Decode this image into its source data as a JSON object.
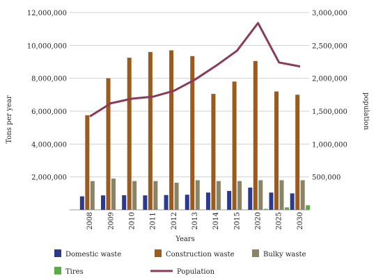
{
  "chart_data": {
    "type": "bar",
    "title": "",
    "xlabel": "Years",
    "ylabel": "Tons per year",
    "y2label": "population",
    "categories": [
      "2008",
      "2009",
      "2010",
      "2011",
      "2012",
      "2013",
      "2014",
      "2015",
      "2020",
      "2025",
      "2030"
    ],
    "ylim": [
      0,
      12000000
    ],
    "y2lim": [
      0,
      3000000
    ],
    "yticks": [
      "12,000,000",
      "10,000,000",
      "8,000,000",
      "6,000,000",
      "4,000,000",
      "2,000,000"
    ],
    "y2ticks": [
      "3,000,000",
      "2,500,000",
      "2,000,000",
      "1,500,000",
      "1,000,000",
      "500,000"
    ],
    "grid": true,
    "legend_position": "bottom",
    "series": [
      {
        "name": "Domestic waste",
        "type": "bar",
        "axis": "left",
        "color": "#2b3a8c",
        "values": [
          820000,
          880000,
          890000,
          880000,
          900000,
          920000,
          1050000,
          1150000,
          1350000,
          1050000,
          1000000
        ]
      },
      {
        "name": "Construction waste",
        "type": "bar",
        "axis": "left",
        "color": "#9b5a1e",
        "values": [
          5750000,
          8000000,
          9250000,
          9600000,
          9700000,
          9350000,
          7050000,
          7800000,
          9050000,
          7200000,
          7000000
        ]
      },
      {
        "name": "Bulky waste",
        "type": "bar",
        "axis": "left",
        "color": "#8a8466",
        "values": [
          1750000,
          1900000,
          1750000,
          1750000,
          1650000,
          1800000,
          1750000,
          1750000,
          1800000,
          1800000,
          1800000
        ]
      },
      {
        "name": "Tires",
        "type": "bar",
        "axis": "left",
        "color": "#5fa84a",
        "values": [
          0,
          0,
          0,
          0,
          0,
          0,
          0,
          0,
          60000,
          150000,
          280000
        ]
      },
      {
        "name": "Population",
        "type": "line",
        "axis": "right",
        "color": "#8c3a5a",
        "values": [
          1420000,
          1620000,
          1690000,
          1720000,
          1810000,
          1980000,
          2190000,
          2420000,
          2840000,
          2240000,
          2180000
        ]
      }
    ]
  }
}
